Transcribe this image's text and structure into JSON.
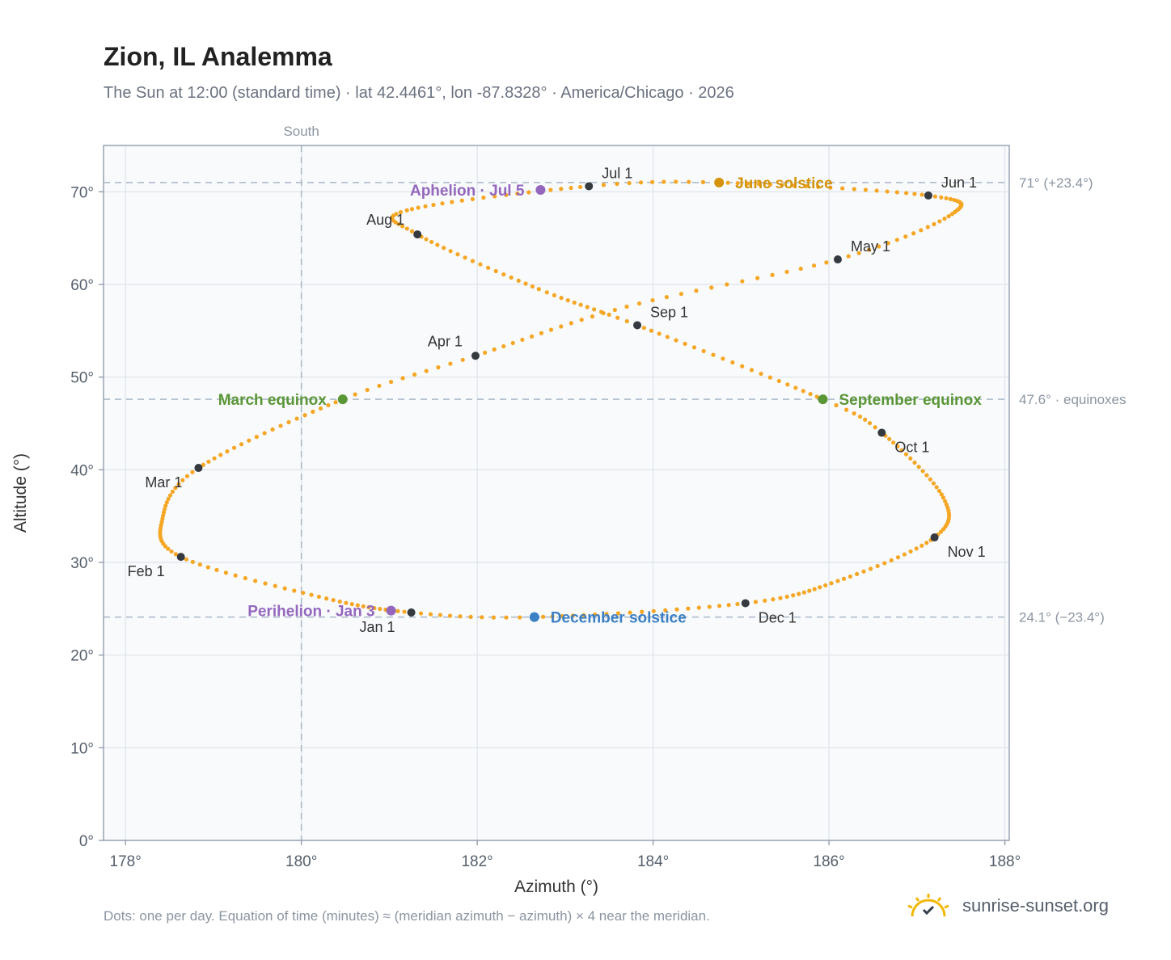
{
  "header": {
    "title": "Zion, IL Analemma",
    "subtitle": "The Sun at 12:00 (standard time) · lat 42.4461°, lon -87.8328° · America/Chicago · 2026"
  },
  "footer": {
    "note": "Dots: one per day. Equation of time (minutes) ≈ (meridian azimuth − azimuth) × 4 near the meridian.",
    "brand": "sunrise-sunset.org"
  },
  "colors": {
    "curve": "#f5a623",
    "month_marker": "#343a40",
    "june_solstice": "#d4930a",
    "december_solstice": "#3b7fc4",
    "equinox": "#5a9636",
    "apsis": "#9467bd",
    "reference_line": "#a9b8c6",
    "plot_background": "#f8fafc",
    "grid": "#e3e8ee"
  },
  "chart_data": {
    "type": "scatter",
    "title": "Zion, IL Analemma",
    "xlabel": "Azimuth (°)",
    "ylabel": "Altitude (°)",
    "xlim": [
      177.75,
      188.05
    ],
    "ylim": [
      0,
      75
    ],
    "x_ticks": [
      178,
      180,
      182,
      184,
      186,
      188
    ],
    "x_tick_labels": [
      "178°",
      "180°",
      "182°",
      "184°",
      "186°",
      "188°"
    ],
    "y_ticks": [
      0,
      10,
      20,
      30,
      40,
      50,
      60,
      70
    ],
    "y_tick_labels": [
      "0°",
      "10°",
      "20°",
      "30°",
      "40°",
      "50°",
      "60°",
      "70°"
    ],
    "grid": true,
    "meridian": {
      "azimuth": 180,
      "label": "South"
    },
    "reference_lines": [
      {
        "altitude": 71.0,
        "label": "71° (+23.4°)"
      },
      {
        "altitude": 47.6,
        "label": "47.6° · equinoxes"
      },
      {
        "altitude": 24.1,
        "label": "24.1° (−23.4°)"
      }
    ],
    "series": [
      {
        "name": "",
        "points_per_year": 365,
        "control_points": [
          {
            "day": 0,
            "az": 181.25,
            "alt": 24.6
          },
          {
            "day": 15,
            "az": 180.2,
            "alt": 26.3
          },
          {
            "day": 31,
            "az": 178.63,
            "alt": 30.6
          },
          {
            "day": 45,
            "az": 178.42,
            "alt": 34.7
          },
          {
            "day": 59,
            "az": 178.83,
            "alt": 40.2
          },
          {
            "day": 79,
            "az": 180.47,
            "alt": 47.6
          },
          {
            "day": 90,
            "az": 181.98,
            "alt": 52.3
          },
          {
            "day": 105,
            "az": 183.7,
            "alt": 57.6
          },
          {
            "day": 120,
            "az": 186.1,
            "alt": 62.7
          },
          {
            "day": 135,
            "az": 187.4,
            "alt": 67.6
          },
          {
            "day": 151,
            "az": 187.13,
            "alt": 69.6
          },
          {
            "day": 171,
            "az": 184.75,
            "alt": 71.0
          },
          {
            "day": 181,
            "az": 183.27,
            "alt": 70.6
          },
          {
            "day": 200,
            "az": 181.2,
            "alt": 68.0
          },
          {
            "day": 212,
            "az": 181.32,
            "alt": 65.4
          },
          {
            "day": 230,
            "az": 182.7,
            "alt": 59.5
          },
          {
            "day": 243,
            "az": 183.82,
            "alt": 55.6
          },
          {
            "day": 265,
            "az": 185.93,
            "alt": 47.6
          },
          {
            "day": 273,
            "az": 186.6,
            "alt": 44.0
          },
          {
            "day": 290,
            "az": 187.3,
            "alt": 37.0
          },
          {
            "day": 304,
            "az": 187.2,
            "alt": 32.7
          },
          {
            "day": 320,
            "az": 186.1,
            "alt": 28.0
          },
          {
            "day": 334,
            "az": 185.05,
            "alt": 25.6
          },
          {
            "day": 354,
            "az": 182.65,
            "alt": 24.1
          },
          {
            "day": 365,
            "az": 181.25,
            "alt": 24.6
          }
        ]
      }
    ],
    "month_markers": [
      {
        "label": "Jan 1",
        "az": 181.25,
        "alt": 24.6,
        "anchor": "below-left"
      },
      {
        "label": "Feb 1",
        "az": 178.63,
        "alt": 30.6,
        "anchor": "below-left"
      },
      {
        "label": "Mar 1",
        "az": 178.83,
        "alt": 40.2,
        "anchor": "below-left"
      },
      {
        "label": "Apr 1",
        "az": 181.98,
        "alt": 52.3,
        "anchor": "above-left"
      },
      {
        "label": "May 1",
        "az": 186.1,
        "alt": 62.7,
        "anchor": "above-right"
      },
      {
        "label": "Jun 1",
        "az": 187.13,
        "alt": 69.6,
        "anchor": "above-right"
      },
      {
        "label": "Jul 1",
        "az": 183.27,
        "alt": 70.6,
        "anchor": "above-right"
      },
      {
        "label": "Aug 1",
        "az": 181.32,
        "alt": 65.4,
        "anchor": "above-left"
      },
      {
        "label": "Sep 1",
        "az": 183.82,
        "alt": 55.6,
        "anchor": "above-right"
      },
      {
        "label": "Oct 1",
        "az": 186.6,
        "alt": 44.0,
        "anchor": "below-right"
      },
      {
        "label": "Nov 1",
        "az": 187.2,
        "alt": 32.7,
        "anchor": "below-right"
      },
      {
        "label": "Dec 1",
        "az": 185.05,
        "alt": 25.6,
        "anchor": "below-right"
      }
    ],
    "events": [
      {
        "label": "June solstice",
        "az": 184.75,
        "alt": 71.0,
        "color": "#d4930a",
        "side": "right"
      },
      {
        "label": "December solstice",
        "az": 182.65,
        "alt": 24.1,
        "color": "#3b7fc4",
        "side": "right"
      },
      {
        "label": "March equinox",
        "az": 180.47,
        "alt": 47.6,
        "color": "#5a9636",
        "side": "left"
      },
      {
        "label": "September equinox",
        "az": 185.93,
        "alt": 47.6,
        "color": "#5a9636",
        "side": "right"
      },
      {
        "label": "Aphelion · Jul 5",
        "az": 182.72,
        "alt": 70.2,
        "color": "#9467bd",
        "side": "left"
      },
      {
        "label": "Perihelion · Jan 3",
        "az": 181.02,
        "alt": 24.8,
        "color": "#9467bd",
        "side": "left"
      }
    ]
  }
}
